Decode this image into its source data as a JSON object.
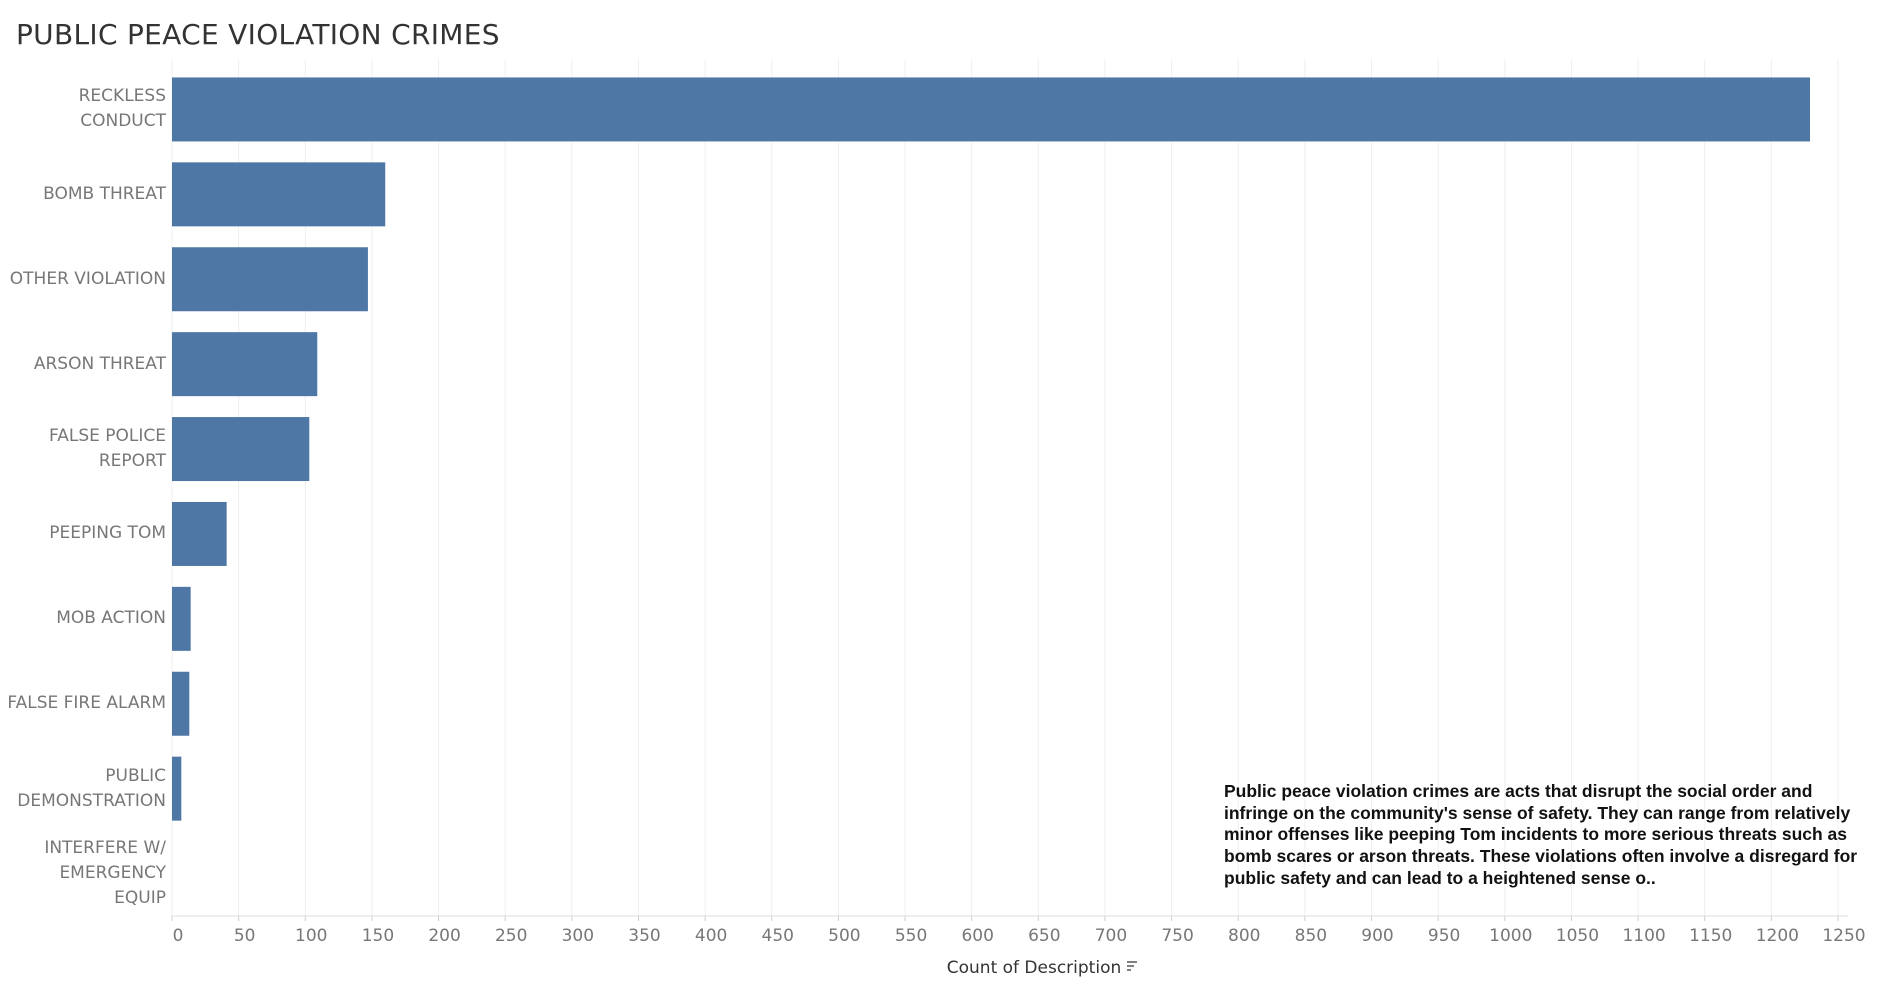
{
  "chart_data": {
    "type": "bar",
    "orientation": "horizontal",
    "title": "PUBLIC PEACE VIOLATION CRIMES",
    "categories": [
      "RECKLESS CONDUCT",
      "BOMB THREAT",
      "OTHER VIOLATION",
      "ARSON THREAT",
      "FALSE POLICE REPORT",
      "PEEPING TOM",
      "MOB ACTION",
      "FALSE FIRE ALARM",
      "PUBLIC DEMONSTRATION",
      "INTERFERE W/ EMERGENCY EQUIP"
    ],
    "values": [
      1229,
      160,
      147,
      109,
      103,
      41,
      14,
      13,
      7,
      0
    ],
    "color": "#4e77a5",
    "xlim": [
      0,
      1250
    ],
    "xticks": [
      0,
      50,
      100,
      150,
      200,
      250,
      300,
      350,
      400,
      450,
      500,
      550,
      600,
      650,
      700,
      750,
      800,
      850,
      900,
      950,
      1000,
      1050,
      1100,
      1150,
      1200,
      1250
    ],
    "xlabel": "Count of Description",
    "grid": true,
    "annotation": "Public peace violation crimes are acts that disrupt the social order and infringe on the community's sense of safety. They can range from relatively minor offenses like peeping Tom incidents to more serious threats such as bomb scares or arson threats. These violations often involve a disregard for public safety and can lead to a heightened sense o.."
  }
}
